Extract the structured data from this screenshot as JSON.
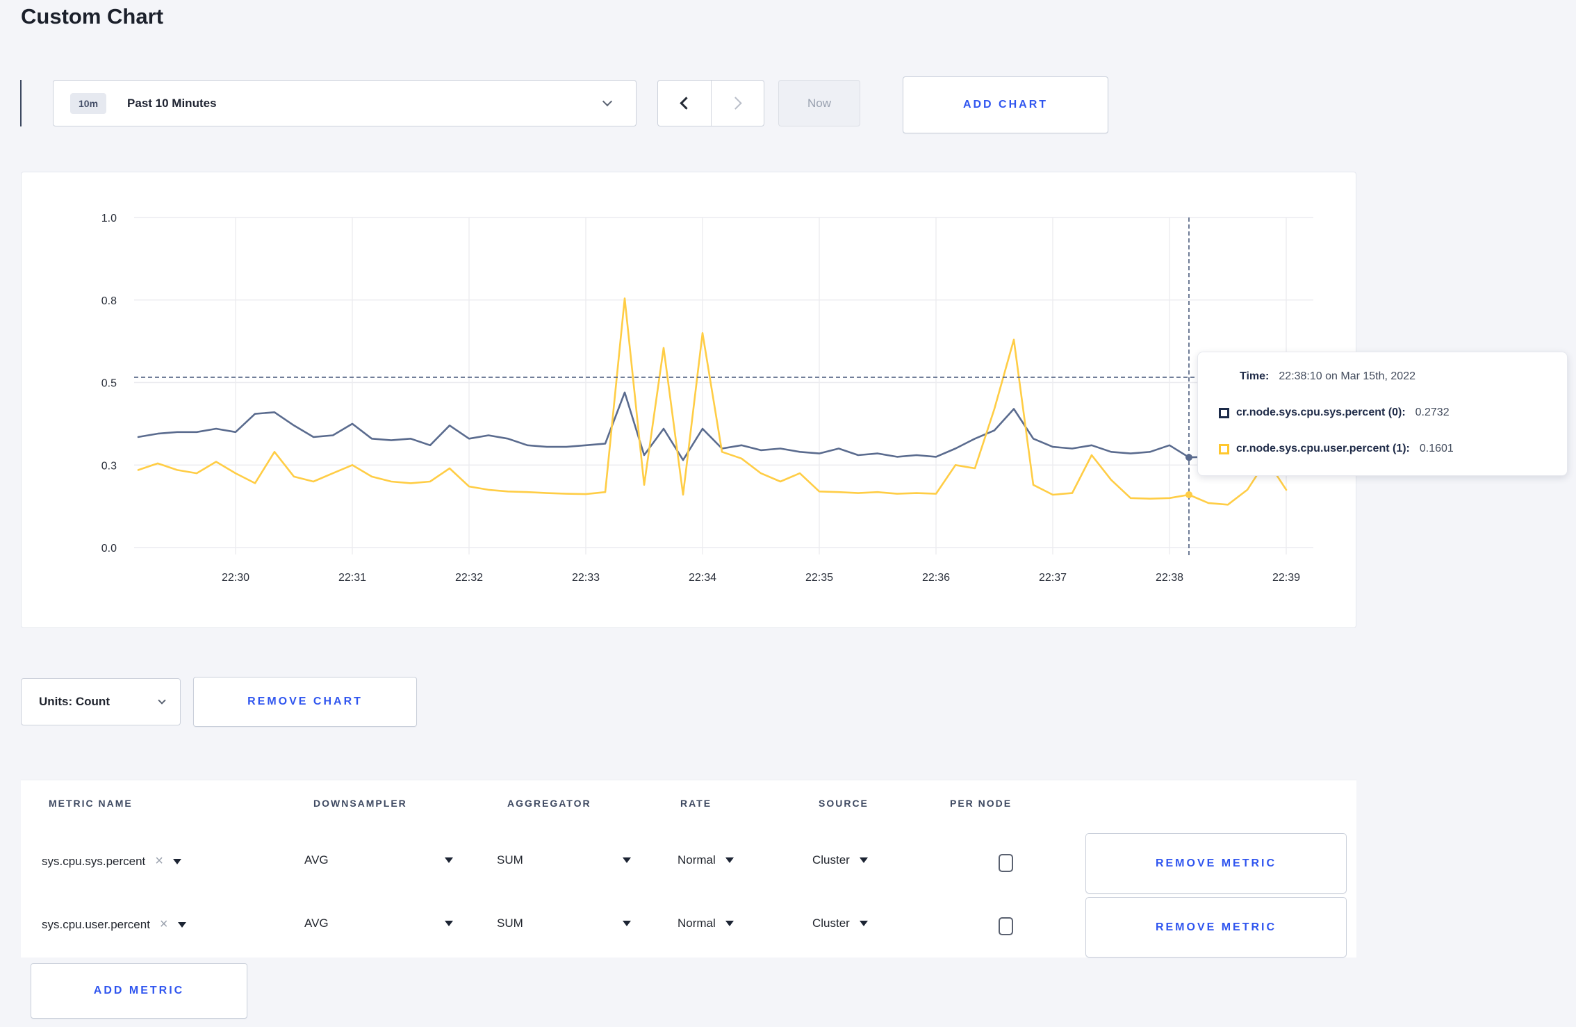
{
  "page": {
    "title": "Custom Chart"
  },
  "toolbar": {
    "time_badge": "10m",
    "time_label": "Past 10 Minutes",
    "now_label": "Now",
    "add_chart_label": "ADD CHART"
  },
  "chart_controls": {
    "units_label": "Units: Count",
    "remove_chart_label": "REMOVE CHART"
  },
  "tooltip": {
    "time_label": "Time:",
    "time_value": "22:38:10 on Mar 15th, 2022",
    "rows": [
      {
        "label": "cr.node.sys.cpu.sys.percent (0):",
        "value": "0.2732",
        "color": "#1c2b49"
      },
      {
        "label": "cr.node.sys.cpu.user.percent (1):",
        "value": "0.1601",
        "color": "#ffc72e"
      }
    ]
  },
  "chart_data": {
    "type": "line",
    "title": "",
    "xlabel": "",
    "ylabel": "",
    "ylim": [
      0,
      1
    ],
    "grid": true,
    "legend_position": "tooltip-only",
    "x_start_time": "22:29:10",
    "x_interval_seconds": 10,
    "x_tick_labels": [
      "22:30",
      "22:31",
      "22:32",
      "22:33",
      "22:34",
      "22:35",
      "22:36",
      "22:37",
      "22:38",
      "22:39"
    ],
    "y_ticks": [
      {
        "value": 0.0,
        "label": "0.0"
      },
      {
        "value": 0.25,
        "label": "0.3"
      },
      {
        "value": 0.5,
        "label": "0.5"
      },
      {
        "value": 0.75,
        "label": "0.8"
      },
      {
        "value": 1.0,
        "label": "1.0"
      }
    ],
    "series": [
      {
        "name": "cr.node.sys.cpu.sys.percent",
        "color": "#5a6b8e",
        "values": [
          0.335,
          0.345,
          0.35,
          0.35,
          0.36,
          0.35,
          0.405,
          0.41,
          0.37,
          0.335,
          0.34,
          0.375,
          0.33,
          0.325,
          0.33,
          0.31,
          0.37,
          0.33,
          0.34,
          0.33,
          0.31,
          0.305,
          0.305,
          0.31,
          0.315,
          0.47,
          0.28,
          0.36,
          0.265,
          0.36,
          0.3,
          0.31,
          0.295,
          0.3,
          0.29,
          0.285,
          0.3,
          0.28,
          0.285,
          0.275,
          0.28,
          0.275,
          0.3,
          0.33,
          0.355,
          0.42,
          0.33,
          0.305,
          0.3,
          0.31,
          0.29,
          0.285,
          0.29,
          0.31,
          0.2732,
          0.275,
          0.27,
          0.275,
          0.27,
          0.275
        ]
      },
      {
        "name": "cr.node.sys.cpu.user.percent",
        "color": "#ffcd45",
        "values": [
          0.235,
          0.255,
          0.235,
          0.225,
          0.26,
          0.225,
          0.195,
          0.29,
          0.215,
          0.2,
          0.225,
          0.25,
          0.215,
          0.2,
          0.195,
          0.2,
          0.24,
          0.185,
          0.175,
          0.17,
          0.168,
          0.165,
          0.163,
          0.162,
          0.168,
          0.755,
          0.19,
          0.605,
          0.16,
          0.65,
          0.29,
          0.27,
          0.225,
          0.2,
          0.225,
          0.17,
          0.168,
          0.165,
          0.168,
          0.163,
          0.165,
          0.163,
          0.25,
          0.24,
          0.42,
          0.63,
          0.19,
          0.16,
          0.165,
          0.28,
          0.205,
          0.15,
          0.148,
          0.15,
          0.1601,
          0.135,
          0.13,
          0.175,
          0.265,
          0.175
        ]
      }
    ],
    "crosshair": {
      "time": "22:38:10",
      "hover_y_value": 0.516,
      "points": [
        {
          "series": 0,
          "value": 0.2732
        },
        {
          "series": 1,
          "value": 0.1601
        }
      ]
    }
  },
  "metrics_table": {
    "headers": [
      "METRIC NAME",
      "DOWNSAMPLER",
      "AGGREGATOR",
      "RATE",
      "SOURCE",
      "PER NODE"
    ],
    "rows": [
      {
        "metric": "sys.cpu.sys.percent",
        "downsampler": "AVG",
        "aggregator": "SUM",
        "rate": "Normal",
        "source": "Cluster",
        "per_node": false,
        "remove_label": "REMOVE METRIC"
      },
      {
        "metric": "sys.cpu.user.percent",
        "downsampler": "AVG",
        "aggregator": "SUM",
        "rate": "Normal",
        "source": "Cluster",
        "per_node": false,
        "remove_label": "REMOVE METRIC"
      }
    ],
    "add_metric_label": "ADD METRIC"
  }
}
